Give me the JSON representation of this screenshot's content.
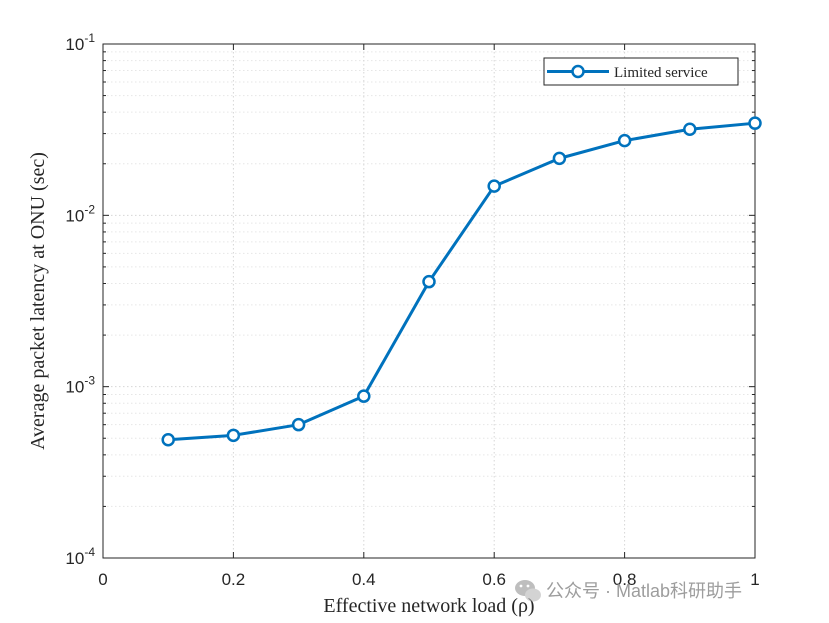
{
  "chart_data": {
    "type": "line",
    "xlabel": "Effective network load (ρ)",
    "ylabel": "Average packet latency at ONU (sec)",
    "xlim": [
      0,
      1
    ],
    "ylim": [
      0.0001,
      0.1
    ],
    "yscale": "log",
    "grid": true,
    "legend_position": "top-right",
    "x_ticks": [
      "0",
      "0.2",
      "0.4",
      "0.6",
      "0.8",
      "1"
    ],
    "y_ticks": [
      {
        "base": "10",
        "exp": "-4"
      },
      {
        "base": "10",
        "exp": "-3"
      },
      {
        "base": "10",
        "exp": "-2"
      },
      {
        "base": "10",
        "exp": "-1"
      }
    ],
    "series": [
      {
        "name": "Limited service",
        "color": "#0072BD",
        "marker": "circle",
        "x": [
          0.1,
          0.2,
          0.3,
          0.4,
          0.5,
          0.6,
          0.7,
          0.8,
          0.9,
          1.0
        ],
        "y": [
          0.00049,
          0.00052,
          0.0006,
          0.00088,
          0.0041,
          0.0148,
          0.0215,
          0.0273,
          0.0318,
          0.0345
        ]
      }
    ]
  },
  "watermark": {
    "text": "公众号 · Matlab科研助手"
  }
}
